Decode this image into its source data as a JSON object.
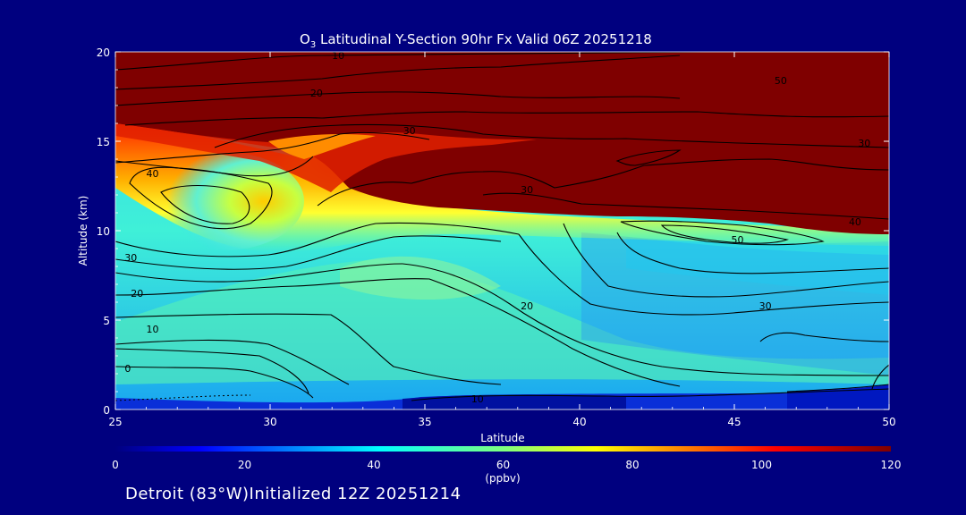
{
  "chart_data": {
    "type": "heatmap",
    "title": "O",
    "title_subscript": "3",
    "title_rest": " Latitudinal Y-Section 90hr  Fx Valid 06Z 20251218",
    "xlabel": "Latitude",
    "ylabel": "Altitude (km)",
    "xlim": [
      25,
      50
    ],
    "ylim": [
      0,
      20
    ],
    "x_ticks": [
      "25",
      "30",
      "35",
      "40",
      "45",
      "50"
    ],
    "y_ticks": [
      "0",
      "5",
      "10",
      "15",
      "20"
    ],
    "colorbar": {
      "unit": "(ppbv)",
      "range": [
        0,
        120
      ],
      "ticks": [
        "0",
        "20",
        "40",
        "60",
        "80",
        "100",
        "120"
      ]
    },
    "contour_labels": [
      {
        "text": "10",
        "lat": 32.2,
        "alt": 19.8
      },
      {
        "text": "20",
        "lat": 31.5,
        "alt": 17.7
      },
      {
        "text": "30",
        "lat": 34.5,
        "alt": 15.6
      },
      {
        "text": "50",
        "lat": 46.5,
        "alt": 18.4
      },
      {
        "text": "30",
        "lat": 49.2,
        "alt": 14.9
      },
      {
        "text": "40",
        "lat": 26.2,
        "alt": 13.2
      },
      {
        "text": "30",
        "lat": 38.3,
        "alt": 12.3
      },
      {
        "text": "40",
        "lat": 48.9,
        "alt": 10.5
      },
      {
        "text": "50",
        "lat": 45.1,
        "alt": 9.5
      },
      {
        "text": "30",
        "lat": 25.5,
        "alt": 8.5
      },
      {
        "text": "20",
        "lat": 25.7,
        "alt": 6.5
      },
      {
        "text": "20",
        "lat": 38.3,
        "alt": 5.8
      },
      {
        "text": "30",
        "lat": 46.0,
        "alt": 5.8
      },
      {
        "text": "10",
        "lat": 26.2,
        "alt": 4.5
      },
      {
        "text": "0",
        "lat": 25.4,
        "alt": 2.3
      },
      {
        "text": "10",
        "lat": 36.7,
        "alt": 0.6
      }
    ]
  },
  "footer": "Detroit (83°W)Initialized 12Z 20251214"
}
